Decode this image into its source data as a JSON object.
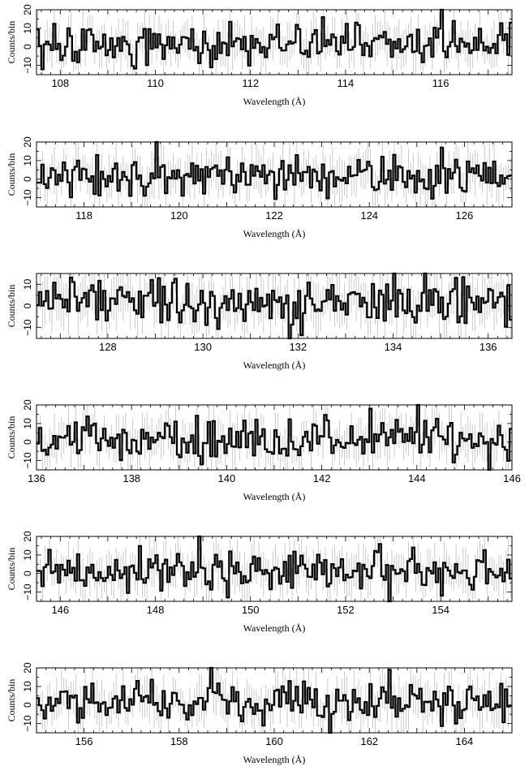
{
  "chart_data": [
    {
      "type": "line",
      "xlabel": "Wavelength (Å)",
      "ylabel": "Counts/bin",
      "xlim": [
        107.5,
        117.5
      ],
      "ylim": [
        -15,
        20
      ],
      "x_ticks": [
        108,
        110,
        112,
        114,
        116
      ],
      "y_ticks": [
        -10,
        0,
        10,
        20
      ],
      "y_tick_labels": [
        "−10",
        "0",
        "10",
        "20"
      ],
      "x_tick_labels": [
        "108",
        "110",
        "112",
        "114",
        "116"
      ],
      "seed": 11,
      "spikes": [
        [
          113.55,
          16
        ],
        [
          116.0,
          22
        ],
        [
          117.45,
          13
        ]
      ],
      "error_bars": true,
      "grid": false
    },
    {
      "type": "line",
      "xlabel": "Wavelength (Å)",
      "ylabel": "Counts/bin",
      "xlim": [
        117.0,
        127.0
      ],
      "ylim": [
        -15,
        20
      ],
      "x_ticks": [
        118,
        120,
        122,
        124,
        126
      ],
      "y_ticks": [
        -10,
        0,
        10,
        20
      ],
      "y_tick_labels": [
        "−10",
        "0",
        "10",
        "20"
      ],
      "x_tick_labels": [
        "118",
        "120",
        "122",
        "124",
        "126"
      ],
      "seed": 23,
      "spikes": [
        [
          119.55,
          22
        ],
        [
          118.3,
          13
        ],
        [
          125.5,
          17
        ]
      ],
      "error_bars": true,
      "grid": false
    },
    {
      "type": "line",
      "xlabel": "Wavelength (Å)",
      "ylabel": "Counts/bin",
      "xlim": [
        126.5,
        136.5
      ],
      "ylim": [
        -15,
        15
      ],
      "x_ticks": [
        128,
        130,
        132,
        134,
        136
      ],
      "y_ticks": [
        -10,
        0,
        10
      ],
      "y_tick_labels": [
        "−10",
        "0",
        "10"
      ],
      "x_tick_labels": [
        "128",
        "130",
        "132",
        "134",
        "136"
      ],
      "seed": 37,
      "spikes": [
        [
          134.65,
          16
        ],
        [
          128.9,
          12
        ],
        [
          131.85,
          -15
        ]
      ],
      "error_bars": true,
      "grid": false
    },
    {
      "type": "line",
      "xlabel": "Wavelength (Å)",
      "ylabel": "Counts/bin",
      "xlim": [
        136.0,
        146.0
      ],
      "ylim": [
        -15,
        20
      ],
      "x_ticks": [
        136,
        138,
        140,
        142,
        144,
        146
      ],
      "y_ticks": [
        -10,
        0,
        10,
        20
      ],
      "y_tick_labels": [
        "−10",
        "0",
        "10",
        "20"
      ],
      "x_tick_labels": [
        "136",
        "138",
        "140",
        "142",
        "144",
        "146"
      ],
      "seed": 41,
      "spikes": [
        [
          144.0,
          21
        ],
        [
          143.0,
          18
        ],
        [
          145.5,
          -15
        ]
      ],
      "error_bars": true,
      "grid": false
    },
    {
      "type": "line",
      "xlabel": "Wavelength (Å)",
      "ylabel": "Counts/bin",
      "xlim": [
        145.5,
        155.5
      ],
      "ylim": [
        -15,
        20
      ],
      "x_ticks": [
        146,
        148,
        150,
        152,
        154
      ],
      "y_ticks": [
        -10,
        0,
        10,
        20
      ],
      "y_tick_labels": [
        "−10",
        "0",
        "10",
        "20"
      ],
      "x_tick_labels": [
        "146",
        "148",
        "150",
        "152",
        "154"
      ],
      "seed": 53,
      "spikes": [
        [
          148.9,
          21
        ],
        [
          152.9,
          -15
        ],
        [
          153.4,
          14
        ]
      ],
      "error_bars": true,
      "grid": false
    },
    {
      "type": "line",
      "xlabel": "Wavelength (Å)",
      "ylabel": "Counts/bin",
      "xlim": [
        155.0,
        165.0
      ],
      "ylim": [
        -15,
        20
      ],
      "x_ticks": [
        156,
        158,
        160,
        162,
        164
      ],
      "y_ticks": [
        -10,
        0,
        10,
        20
      ],
      "y_tick_labels": [
        "−10",
        "0",
        "10",
        "20"
      ],
      "x_tick_labels": [
        "156",
        "158",
        "160",
        "162",
        "164"
      ],
      "seed": 67,
      "spikes": [
        [
          158.65,
          21
        ],
        [
          162.4,
          19
        ],
        [
          161.2,
          -15
        ]
      ],
      "error_bars": true,
      "grid": false
    }
  ]
}
